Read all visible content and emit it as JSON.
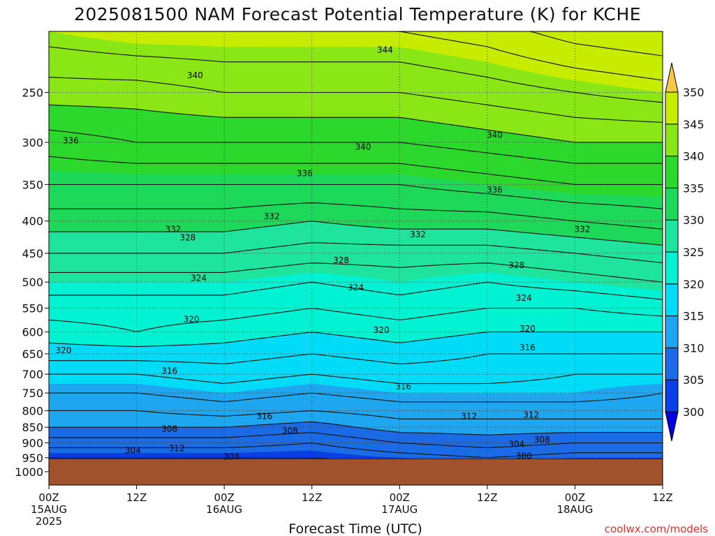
{
  "chart_data": {
    "type": "heatmap",
    "title": "2025081500 NAM Forecast Potential Temperature (K) for KCHE",
    "xlabel": "Forecast Time (UTC)",
    "ylabel": "",
    "x_ticks": [
      {
        "hour": 0,
        "lines": [
          "00Z",
          "15AUG",
          "2025"
        ]
      },
      {
        "hour": 12,
        "lines": [
          "12Z"
        ]
      },
      {
        "hour": 24,
        "lines": [
          "00Z",
          "16AUG"
        ]
      },
      {
        "hour": 36,
        "lines": [
          "12Z"
        ]
      },
      {
        "hour": 48,
        "lines": [
          "00Z",
          "17AUG"
        ]
      },
      {
        "hour": 60,
        "lines": [
          "12Z"
        ]
      },
      {
        "hour": 72,
        "lines": [
          "00Z",
          "18AUG"
        ]
      },
      {
        "hour": 84,
        "lines": [
          "12Z"
        ]
      }
    ],
    "xlim": [
      0,
      84
    ],
    "y_scale": "log-pressure",
    "ylim": [
      1050,
      200
    ],
    "y_ticks": [
      250,
      300,
      350,
      400,
      450,
      500,
      550,
      600,
      650,
      700,
      750,
      800,
      850,
      900,
      950,
      1000
    ],
    "ground_pressure": 955,
    "grid": true,
    "colorbar": {
      "levels": [
        300,
        305,
        310,
        315,
        320,
        325,
        330,
        335,
        340,
        345,
        350
      ],
      "colors": [
        "#0000e0",
        "#0a3ee6",
        "#1b6be6",
        "#1ea6f0",
        "#00dcf8",
        "#00f2d2",
        "#1ee49e",
        "#1ed85a",
        "#2dd82d",
        "#8ae614",
        "#c8ec00",
        "#f0e600",
        "#f5c846"
      ],
      "ground_color": "#a0522d"
    },
    "profile_hours": [
      0,
      12,
      24,
      36,
      48,
      60,
      72,
      84
    ],
    "profile_pressures": [
      950,
      900,
      850,
      800,
      750,
      700,
      650,
      600,
      550,
      500,
      450,
      400,
      350,
      300,
      250,
      200
    ],
    "theta_profiles": [
      [
        304,
        307,
        310,
        312,
        314,
        316,
        319,
        321,
        323,
        325,
        328,
        331,
        334,
        337,
        341,
        345
      ],
      [
        304,
        307,
        310,
        312,
        314,
        316,
        319,
        322,
        323,
        325,
        328,
        331,
        334,
        338,
        341,
        346
      ],
      [
        304,
        307,
        310,
        313,
        315,
        317,
        319,
        321,
        323,
        325,
        328,
        331,
        334,
        338,
        342,
        346
      ],
      [
        304,
        306,
        309,
        312,
        314,
        316,
        318,
        320,
        322,
        324,
        327,
        330,
        334,
        338,
        342,
        346
      ],
      [
        305,
        308,
        311,
        313,
        315,
        317,
        319,
        321,
        323,
        325,
        327,
        331,
        334,
        338,
        342,
        346
      ],
      [
        306,
        309,
        311,
        313,
        315,
        317,
        318,
        320,
        322,
        324,
        327,
        331,
        335,
        339,
        343,
        347
      ],
      [
        305,
        308,
        311,
        313,
        315,
        316,
        318,
        320,
        322,
        325,
        328,
        332,
        336,
        340,
        344,
        349
      ],
      [
        305,
        308,
        311,
        313,
        314,
        316,
        318,
        320,
        323,
        326,
        329,
        333,
        336,
        340,
        345,
        350
      ]
    ],
    "contour_labels": [
      {
        "text": "344",
        "hour": 46,
        "pressure": 214
      },
      {
        "text": "340",
        "hour": 20,
        "pressure": 235
      },
      {
        "text": "336",
        "hour": 3,
        "pressure": 298
      },
      {
        "text": "340",
        "hour": 43,
        "pressure": 305
      },
      {
        "text": "340",
        "hour": 61,
        "pressure": 292
      },
      {
        "text": "336",
        "hour": 35,
        "pressure": 336
      },
      {
        "text": "336",
        "hour": 61,
        "pressure": 357
      },
      {
        "text": "332",
        "hour": 17,
        "pressure": 412
      },
      {
        "text": "328",
        "hour": 19,
        "pressure": 425
      },
      {
        "text": "332",
        "hour": 30.5,
        "pressure": 393
      },
      {
        "text": "332",
        "hour": 50.5,
        "pressure": 420
      },
      {
        "text": "332",
        "hour": 73,
        "pressure": 412
      },
      {
        "text": "328",
        "hour": 40,
        "pressure": 462
      },
      {
        "text": "328",
        "hour": 64,
        "pressure": 470
      },
      {
        "text": "324",
        "hour": 20.5,
        "pressure": 493
      },
      {
        "text": "324",
        "hour": 42,
        "pressure": 510
      },
      {
        "text": "324",
        "hour": 65,
        "pressure": 530
      },
      {
        "text": "320",
        "hour": 19.5,
        "pressure": 573
      },
      {
        "text": "320",
        "hour": 45.5,
        "pressure": 596
      },
      {
        "text": "320",
        "hour": 65.5,
        "pressure": 593
      },
      {
        "text": "320",
        "hour": 2,
        "pressure": 642
      },
      {
        "text": "316",
        "hour": 16.5,
        "pressure": 692
      },
      {
        "text": "316",
        "hour": 48.5,
        "pressure": 733
      },
      {
        "text": "316",
        "hour": 65.5,
        "pressure": 635
      },
      {
        "text": "316",
        "hour": 29.5,
        "pressure": 817
      },
      {
        "text": "312",
        "hour": 57.5,
        "pressure": 817
      },
      {
        "text": "312",
        "hour": 66,
        "pressure": 813
      },
      {
        "text": "308",
        "hour": 16.5,
        "pressure": 855
      },
      {
        "text": "308",
        "hour": 33,
        "pressure": 862
      },
      {
        "text": "308",
        "hour": 67.5,
        "pressure": 890
      },
      {
        "text": "312",
        "hour": 17.5,
        "pressure": 918
      },
      {
        "text": "304",
        "hour": 11.5,
        "pressure": 925
      },
      {
        "text": "304",
        "hour": 25,
        "pressure": 947
      },
      {
        "text": "304",
        "hour": 64,
        "pressure": 905
      },
      {
        "text": "300",
        "hour": 65,
        "pressure": 945
      }
    ]
  },
  "credit": "coolwx.com/models"
}
